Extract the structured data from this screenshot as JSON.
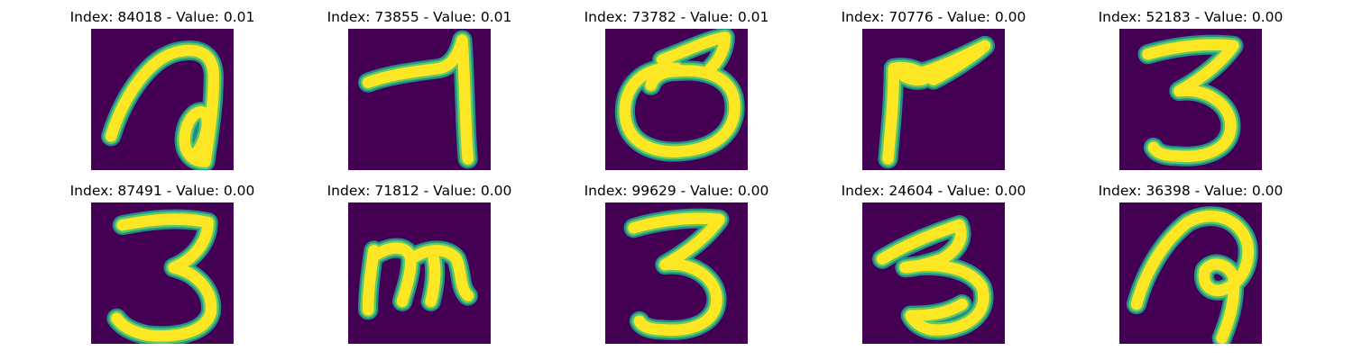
{
  "figure": {
    "colors": {
      "background": "#440154",
      "mid_edge": "#21908d",
      "mid_light": "#5ec962",
      "foreground": "#fde725"
    },
    "panels": [
      {
        "index": "84018",
        "value": "0.01",
        "title": "Index: 84018 - Value: 0.01",
        "digit_shape": "handwritten-7-with-loop"
      },
      {
        "index": "73855",
        "value": "0.01",
        "title": "Index: 73855 - Value: 0.01",
        "digit_shape": "handwritten-7"
      },
      {
        "index": "73782",
        "value": "0.01",
        "title": "Index: 73782 - Value: 0.01",
        "digit_shape": "handwritten-loop-with-stroke"
      },
      {
        "index": "70776",
        "value": "0.00",
        "title": "Index: 70776 - Value: 0.00",
        "digit_shape": "handwritten-7-angular"
      },
      {
        "index": "52183",
        "value": "0.00",
        "title": "Index: 52183 - Value: 0.00",
        "digit_shape": "handwritten-3"
      },
      {
        "index": "87491",
        "value": "0.00",
        "title": "Index: 87491 - Value: 0.00",
        "digit_shape": "handwritten-3-bold"
      },
      {
        "index": "71812",
        "value": "0.00",
        "title": "Index: 71812 - Value: 0.00",
        "digit_shape": "handwritten-m"
      },
      {
        "index": "99629",
        "value": "0.00",
        "title": "Index: 99629 - Value: 0.00",
        "digit_shape": "handwritten-3"
      },
      {
        "index": "24604",
        "value": "0.00",
        "title": "Index: 24604 - Value: 0.00",
        "digit_shape": "handwritten-3-tilted"
      },
      {
        "index": "36398",
        "value": "0.00",
        "title": "Index: 36398 - Value: 0.00",
        "digit_shape": "handwritten-7-loop-p"
      }
    ]
  }
}
